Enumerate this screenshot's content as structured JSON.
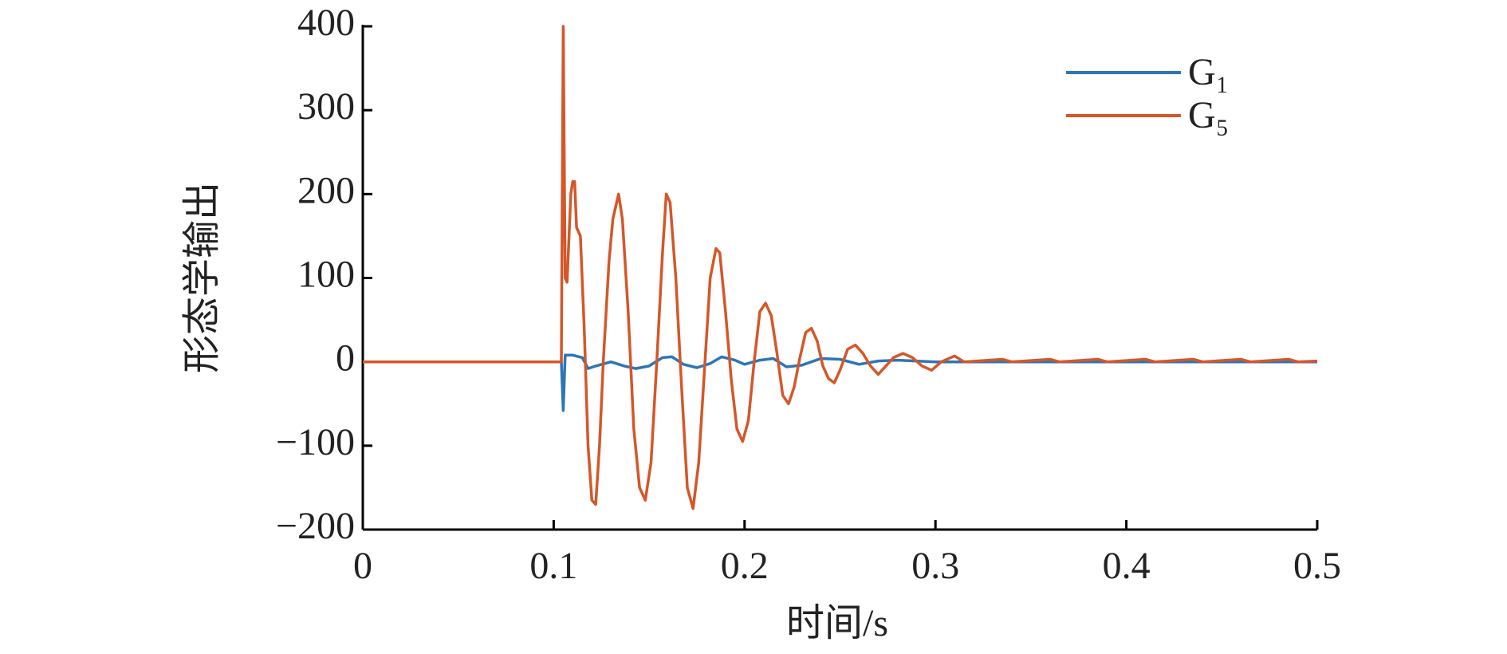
{
  "chart_data": {
    "type": "line",
    "xlabel": "时间/s",
    "ylabel": "形态学输出",
    "xlim": [
      0,
      0.5
    ],
    "xticks": [
      0,
      0.1,
      0.2,
      0.3,
      0.4,
      0.5
    ],
    "ylim": [
      -200,
      400
    ],
    "yticks": [
      {
        "value": -200,
        "label": "−200"
      },
      {
        "value": -100,
        "label": "−100"
      },
      0,
      100,
      200,
      300,
      400
    ],
    "legend": "upper right",
    "series": [
      {
        "name": "G₁",
        "color": "#2e75b6",
        "x": [
          0,
          0.104,
          0.105,
          0.106,
          0.11,
          0.115,
          0.118,
          0.122,
          0.13,
          0.137,
          0.143,
          0.15,
          0.157,
          0.162,
          0.168,
          0.175,
          0.182,
          0.188,
          0.195,
          0.2,
          0.208,
          0.215,
          0.222,
          0.23,
          0.24,
          0.25,
          0.26,
          0.27,
          0.28,
          0.3,
          0.5
        ],
        "values": [
          0,
          0,
          -58,
          8,
          8,
          5,
          -8,
          -5,
          0,
          -5,
          -8,
          -5,
          5,
          6,
          -3,
          -7,
          -2,
          6,
          2,
          -3,
          2,
          4,
          -6,
          -4,
          4,
          3,
          -3,
          1,
          2,
          0,
          0
        ]
      },
      {
        "name": "G₅",
        "color": "#d4572a",
        "x": [
          0,
          0.104,
          0.105,
          0.106,
          0.107,
          0.109,
          0.11,
          0.111,
          0.112,
          0.114,
          0.116,
          0.118,
          0.12,
          0.122,
          0.124,
          0.126,
          0.129,
          0.131,
          0.134,
          0.136,
          0.139,
          0.142,
          0.145,
          0.148,
          0.151,
          0.154,
          0.157,
          0.159,
          0.161,
          0.164,
          0.167,
          0.17,
          0.173,
          0.176,
          0.179,
          0.182,
          0.185,
          0.187,
          0.19,
          0.193,
          0.196,
          0.199,
          0.202,
          0.205,
          0.208,
          0.211,
          0.214,
          0.217,
          0.22,
          0.223,
          0.226,
          0.229,
          0.232,
          0.235,
          0.238,
          0.241,
          0.244,
          0.247,
          0.25,
          0.254,
          0.258,
          0.262,
          0.266,
          0.27,
          0.274,
          0.278,
          0.283,
          0.288,
          0.293,
          0.298,
          0.303,
          0.31,
          0.315,
          0.335,
          0.34,
          0.36,
          0.365,
          0.385,
          0.39,
          0.41,
          0.415,
          0.435,
          0.44,
          0.46,
          0.465,
          0.485,
          0.49,
          0.5
        ],
        "values": [
          0,
          0,
          400,
          100,
          95,
          200,
          215,
          215,
          160,
          150,
          40,
          -100,
          -165,
          -170,
          -100,
          0,
          120,
          170,
          200,
          170,
          60,
          -80,
          -150,
          -165,
          -120,
          0,
          130,
          200,
          190,
          100,
          -30,
          -150,
          -175,
          -120,
          -10,
          100,
          135,
          130,
          60,
          -20,
          -80,
          -95,
          -70,
          0,
          60,
          70,
          55,
          10,
          -40,
          -50,
          -30,
          5,
          35,
          40,
          25,
          -5,
          -20,
          -25,
          -10,
          15,
          20,
          10,
          -5,
          -15,
          -5,
          5,
          10,
          5,
          -5,
          -10,
          0,
          7,
          0,
          3,
          0,
          3,
          0,
          3,
          0,
          3,
          0,
          3,
          0,
          3,
          0,
          3,
          0,
          1
        ]
      }
    ]
  }
}
